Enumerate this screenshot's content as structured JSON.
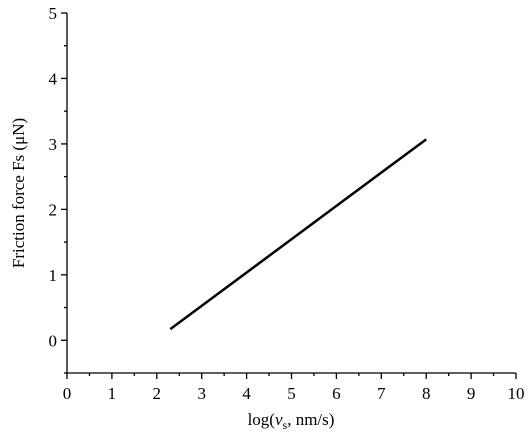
{
  "chart_data": {
    "type": "line",
    "x_label": [
      "log(",
      "v",
      "s",
      ", nm/s)"
    ],
    "y_label": "Friction force Fs (μN)",
    "x": [
      2.3,
      8.0
    ],
    "series": [
      {
        "color": "#000000",
        "values": [
          0.17,
          3.07
        ]
      }
    ],
    "xlim": [
      0,
      10
    ],
    "xticks": [
      0,
      1,
      2,
      3,
      4,
      5,
      6,
      7,
      8,
      9,
      10
    ],
    "xminorticks": [
      0.5,
      1.5,
      2.5,
      3.5,
      4.5,
      5.5,
      6.5,
      7.5,
      8.5,
      9.5
    ],
    "ylim": [
      -0.5,
      5
    ],
    "yticks": [
      0,
      1,
      2,
      3,
      4,
      5
    ],
    "yminorticks": [
      -0.5,
      0.5,
      1.5,
      2.5,
      3.5,
      4.5
    ],
    "grid": false
  }
}
